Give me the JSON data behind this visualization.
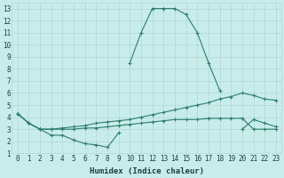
{
  "title": "",
  "xlabel": "Humidex (Indice chaleur)",
  "ylabel": "",
  "bg_color": "#c8ecea",
  "grid_color": "#b0d8d4",
  "line_color": "#2e7d6e",
  "xlim": [
    -0.5,
    23.5
  ],
  "ylim": [
    1,
    13.5
  ],
  "xticks": [
    0,
    1,
    2,
    3,
    4,
    5,
    6,
    7,
    8,
    9,
    10,
    11,
    12,
    13,
    14,
    15,
    16,
    17,
    18,
    19,
    20,
    21,
    22,
    23
  ],
  "yticks": [
    1,
    2,
    3,
    4,
    5,
    6,
    7,
    8,
    9,
    10,
    11,
    12,
    13
  ],
  "series": [
    {
      "x": [
        0,
        1,
        2,
        3,
        4,
        5,
        6,
        7,
        8,
        9
      ],
      "y": [
        4.3,
        3.5,
        3.0,
        2.5,
        2.5,
        2.1,
        1.8,
        1.7,
        1.5,
        2.7
      ]
    },
    {
      "x": [
        20,
        21,
        22,
        23
      ],
      "y": [
        3.0,
        3.8,
        3.5,
        3.2
      ]
    },
    {
      "x": [
        0,
        1,
        2,
        3,
        4,
        5,
        6,
        7,
        8,
        9,
        10,
        11,
        12,
        13,
        14,
        15,
        16,
        17,
        18,
        19,
        20,
        21,
        22,
        23
      ],
      "y": [
        4.3,
        3.5,
        3.0,
        3.0,
        3.1,
        3.2,
        3.3,
        3.5,
        3.6,
        3.7,
        3.8,
        4.0,
        4.2,
        4.4,
        4.6,
        4.8,
        5.0,
        5.2,
        5.5,
        5.7,
        6.0,
        5.8,
        5.5,
        5.4
      ]
    },
    {
      "x": [
        0,
        1,
        2,
        3,
        4,
        5,
        6,
        7,
        8,
        9,
        10,
        11,
        12,
        13,
        14,
        15,
        16,
        17,
        18,
        19,
        20,
        21,
        22,
        23
      ],
      "y": [
        4.3,
        3.5,
        3.0,
        3.0,
        3.0,
        3.0,
        3.1,
        3.1,
        3.2,
        3.3,
        3.4,
        3.5,
        3.6,
        3.7,
        3.8,
        3.8,
        3.8,
        3.9,
        3.9,
        3.9,
        3.9,
        3.0,
        3.0,
        3.0
      ]
    },
    {
      "x": [
        10,
        11,
        12,
        13,
        14,
        15,
        16,
        17,
        18
      ],
      "y": [
        8.5,
        11.0,
        13.0,
        13.0,
        13.0,
        12.5,
        11.0,
        8.5,
        6.2
      ]
    }
  ]
}
